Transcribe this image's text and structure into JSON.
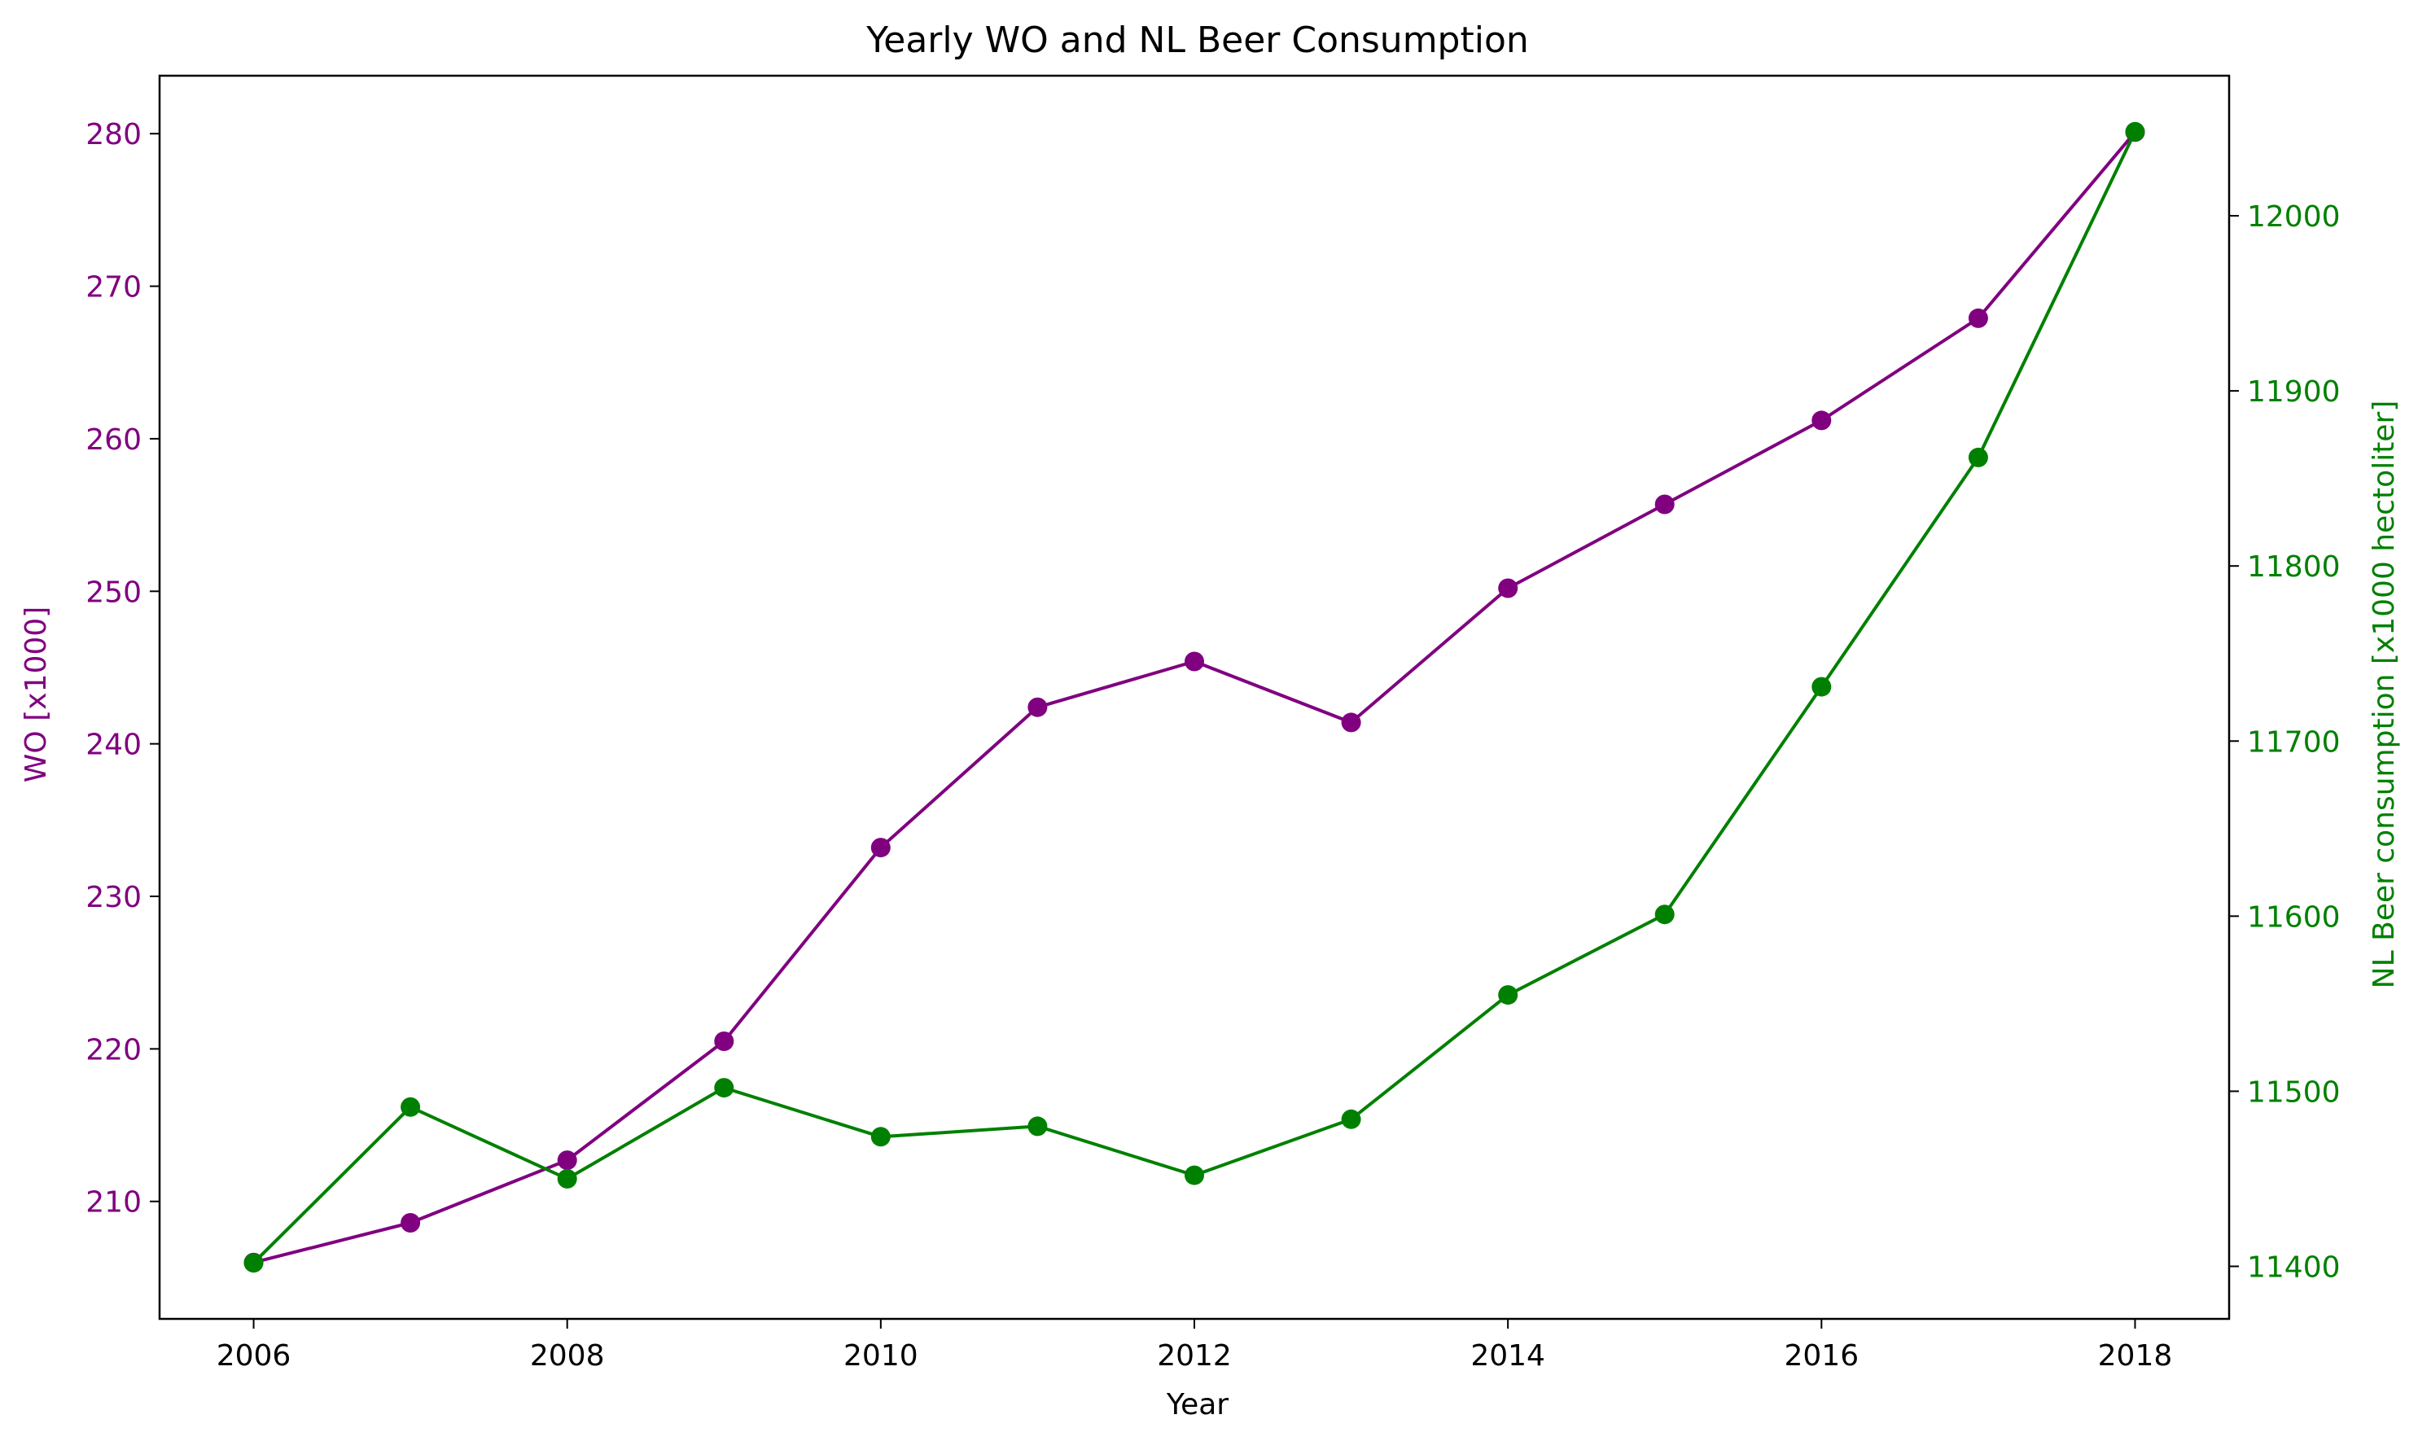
{
  "chart_data": {
    "type": "line",
    "title": "Yearly WO and NL Beer Consumption",
    "xlabel": "Year",
    "ylabel_left": "WO [x1000]",
    "ylabel_right": "NL Beer consumption [x1000 hectoliter]",
    "x": [
      2006,
      2007,
      2008,
      2009,
      2010,
      2011,
      2012,
      2013,
      2014,
      2015,
      2016,
      2017,
      2018
    ],
    "xlim": [
      2005.4,
      2018.6
    ],
    "xticks": [
      2006,
      2008,
      2010,
      2012,
      2014,
      2016,
      2018
    ],
    "grid": false,
    "legend": "none",
    "series": [
      {
        "axis": "left",
        "color": "#800080",
        "values": [
          206.0,
          208.6,
          212.7,
          220.5,
          233.2,
          242.4,
          245.4,
          241.4,
          250.2,
          255.7,
          261.2,
          267.9,
          280.1
        ]
      },
      {
        "axis": "right",
        "color": "#008000",
        "values": [
          11402,
          11491,
          11450,
          11502,
          11474,
          11480,
          11452,
          11484,
          11555,
          11601,
          11731,
          11862,
          12048
        ]
      }
    ],
    "ylim_left": [
      202.3,
      283.8
    ],
    "yticks_left": [
      210,
      220,
      230,
      240,
      250,
      260,
      270,
      280
    ],
    "ylim_right": [
      11370,
      12080
    ],
    "yticks_right": [
      11400,
      11500,
      11600,
      11700,
      11800,
      11900,
      12000
    ]
  }
}
